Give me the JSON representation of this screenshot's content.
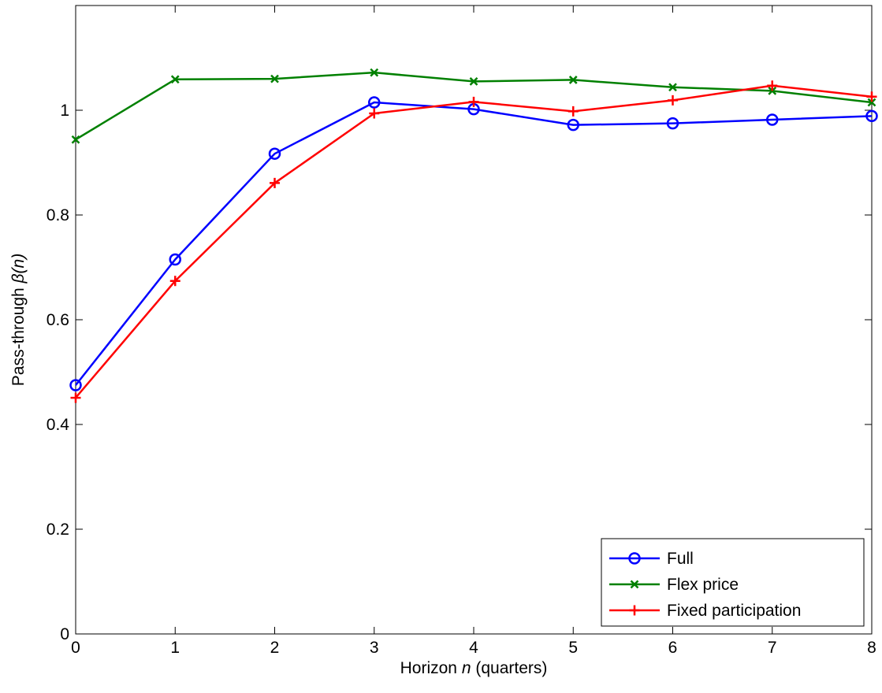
{
  "chart_data": {
    "type": "line",
    "title": "",
    "xlabel_prefix": "Horizon  ",
    "xlabel_var": "n",
    "xlabel_suffix": " (quarters)",
    "ylabel_prefix": "Pass-through  ",
    "ylabel_var": "β(n)",
    "x": [
      0,
      1,
      2,
      3,
      4,
      5,
      6,
      7,
      8
    ],
    "xlim": [
      0,
      8
    ],
    "ylim": [
      0,
      1.2
    ],
    "xticks": [
      "0",
      "1",
      "2",
      "3",
      "4",
      "5",
      "6",
      "7",
      "8"
    ],
    "yticks": [
      "0",
      "0.2",
      "0.4",
      "0.6",
      "0.8",
      "1"
    ],
    "ytick_values": [
      0,
      0.2,
      0.4,
      0.6,
      0.8,
      1.0
    ],
    "grid": false,
    "legend_position": "bottom-right",
    "series": [
      {
        "name": "Full",
        "color": "#0000ff",
        "marker": "circle",
        "values": [
          0.475,
          0.715,
          0.917,
          1.015,
          1.002,
          0.972,
          0.975,
          0.982,
          0.989
        ]
      },
      {
        "name": "Flex price",
        "color": "#008000",
        "marker": "x",
        "values": [
          0.944,
          1.059,
          1.06,
          1.072,
          1.055,
          1.058,
          1.044,
          1.037,
          1.015
        ]
      },
      {
        "name": "Fixed participation",
        "color": "#ff0000",
        "marker": "plus",
        "values": [
          0.451,
          0.674,
          0.861,
          0.994,
          1.016,
          0.998,
          1.019,
          1.047,
          1.026
        ]
      }
    ]
  }
}
